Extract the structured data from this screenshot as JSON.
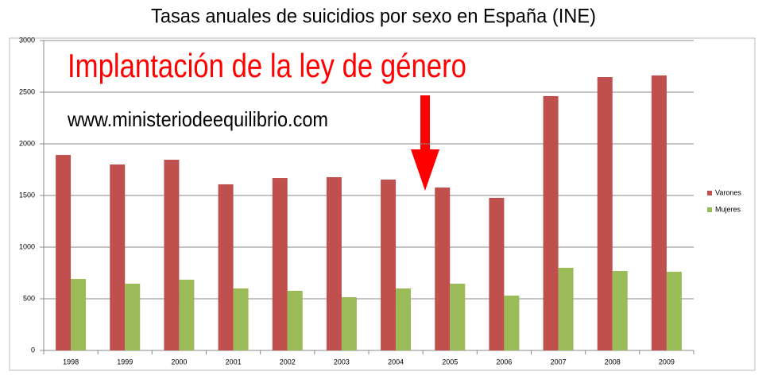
{
  "chart_data": {
    "type": "bar",
    "title": "Tasas anuales de suicidios por sexo en España (INE)",
    "annotations": [
      "Implantación de la ley de género",
      "www.ministeriodeequilibrio.com"
    ],
    "categories": [
      "1998",
      "1999",
      "2000",
      "2001",
      "2002",
      "2003",
      "2004",
      "2005",
      "2006",
      "2007",
      "2008",
      "2009"
    ],
    "series": [
      {
        "name": "Varones",
        "color": "#c0504d",
        "values": [
          1892,
          1800,
          1846,
          1608,
          1669,
          1677,
          1654,
          1577,
          1477,
          2462,
          2646,
          2662
        ]
      },
      {
        "name": "Mujeres",
        "color": "#9bbb59",
        "values": [
          692,
          646,
          685,
          600,
          577,
          515,
          600,
          646,
          531,
          800,
          769,
          762
        ]
      }
    ],
    "ylim": [
      0,
      3000
    ],
    "yticks": [
      0,
      500,
      1000,
      1500,
      2000,
      2500,
      3000
    ],
    "grid": true,
    "legend": "right"
  }
}
